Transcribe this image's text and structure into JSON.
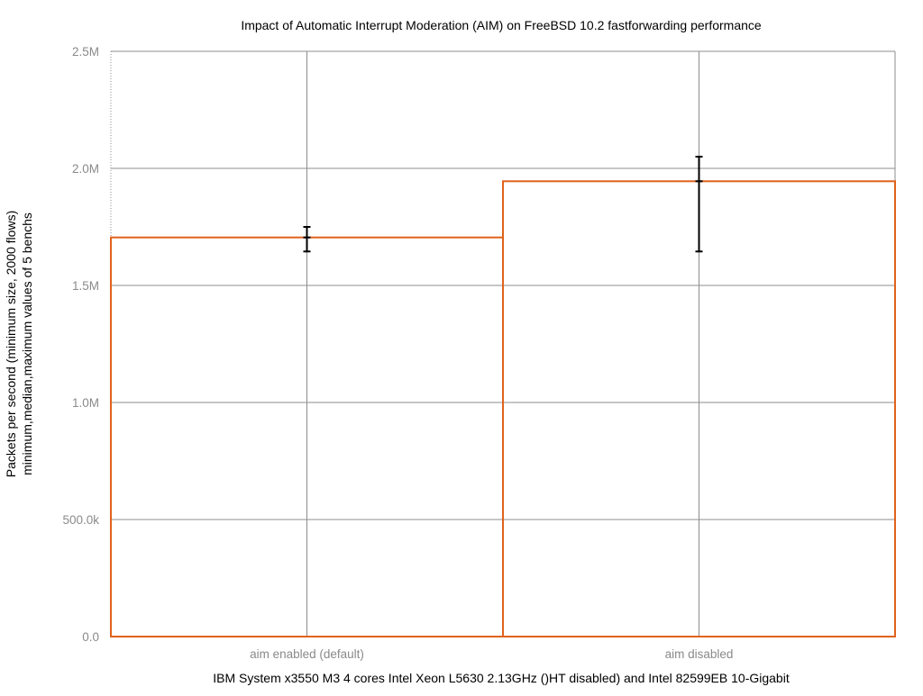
{
  "chart_data": {
    "type": "bar",
    "title": "Impact of Automatic Interrupt Moderation (AIM) on FreeBSD 10.2 fastforwarding performance",
    "xlabel": "IBM System x3550 M3 4 cores Intel Xeon L5630 2.13GHz ()HT disabled) and Intel 82599EB 10-Gigabit",
    "ylabel_lines": [
      "Packets per second (minimum size, 2000 flows)",
      "minimum,median,maximum values of 5 benchs"
    ],
    "categories": [
      "aim enabled (default)",
      "aim disabled"
    ],
    "values": [
      1705000,
      1945000
    ],
    "error_min": [
      1645000,
      1645000
    ],
    "error_max": [
      1750000,
      2050000
    ],
    "ylim": [
      0,
      2500000
    ],
    "yticks": [
      {
        "value": 0,
        "label": "0.0"
      },
      {
        "value": 500000,
        "label": "500.0k"
      },
      {
        "value": 1000000,
        "label": "1.0M"
      },
      {
        "value": 1500000,
        "label": "1.5M"
      },
      {
        "value": 2000000,
        "label": "2.0M"
      },
      {
        "value": 2500000,
        "label": "2.5M"
      }
    ],
    "grid": true,
    "colors": {
      "bar_outline": "#e0621b",
      "error_bar": "#000000",
      "grid": "#8c8c8c",
      "tick_text": "#8a8a8a",
      "text": "#000000"
    }
  }
}
